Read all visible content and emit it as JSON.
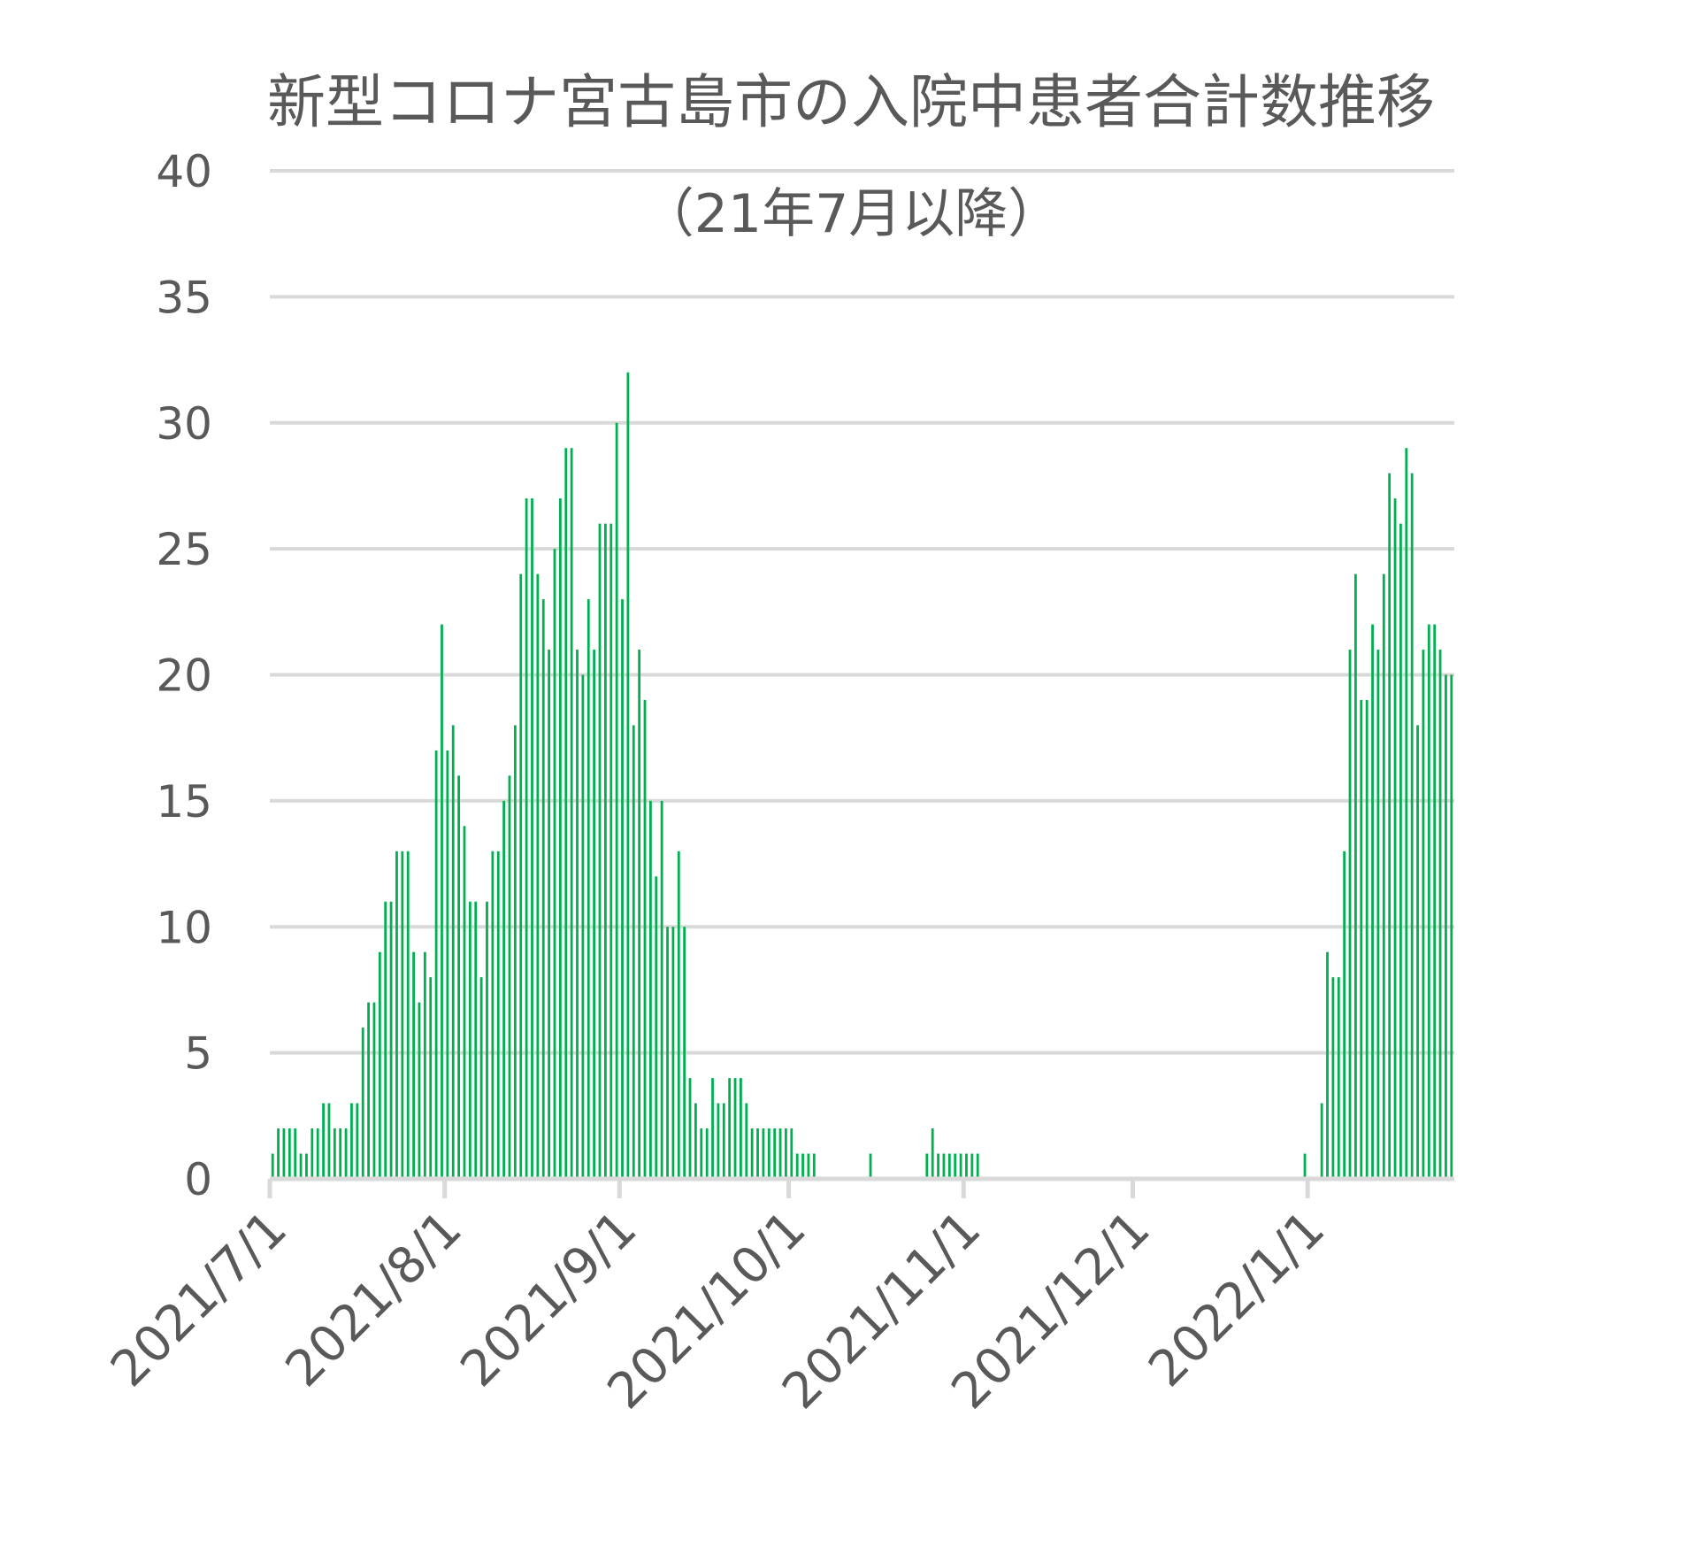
{
  "chart_data": {
    "type": "bar",
    "title": "新型コロナ宮古島市の入院中患者合計数推移",
    "subtitle": "（21年7月以降）",
    "xlabel": "",
    "ylabel": "",
    "ylim": [
      0,
      40
    ],
    "yticks": [
      "0",
      "5",
      "10",
      "15",
      "20",
      "25",
      "30",
      "35",
      "40"
    ],
    "xlim": [
      "2021-07-01",
      "2022-01-27"
    ],
    "xticks": [
      {
        "date": "2021-07-01",
        "label": "2021/7/1"
      },
      {
        "date": "2021-08-01",
        "label": "2021/8/1"
      },
      {
        "date": "2021-09-01",
        "label": "2021/9/1"
      },
      {
        "date": "2021-10-01",
        "label": "2021/10/1"
      },
      {
        "date": "2021-11-01",
        "label": "2021/11/1"
      },
      {
        "date": "2021-12-01",
        "label": "2021/12/1"
      },
      {
        "date": "2022-01-01",
        "label": "2022/1/1"
      }
    ],
    "grid": true,
    "legend": "none",
    "bar_color": "#00b050",
    "grid_color": "#d9d9d9",
    "text_color": "#595959",
    "daily_values": {
      "2021-07": [
        1,
        2,
        2,
        2,
        2,
        1,
        1,
        2,
        2,
        3,
        3,
        2,
        2,
        2,
        3,
        3,
        6,
        7,
        7,
        9,
        11,
        11,
        13,
        13,
        13,
        9,
        7,
        9,
        8,
        17,
        22
      ],
      "2021-08": [
        17,
        18,
        16,
        14,
        11,
        11,
        8,
        11,
        13,
        13,
        15,
        16,
        18,
        24,
        27,
        27,
        24,
        23,
        21,
        25,
        27,
        29,
        29,
        21,
        20,
        23,
        21,
        26,
        26,
        26,
        30
      ],
      "2021-09": [
        23,
        32,
        18,
        21,
        19,
        15,
        12,
        15,
        10,
        10,
        13,
        10,
        4,
        3,
        2,
        2,
        4,
        3,
        3,
        4,
        4,
        4,
        3,
        2,
        2,
        2,
        2,
        2,
        2,
        2
      ],
      "2021-10": [
        2,
        1,
        1,
        1,
        1,
        0,
        0,
        0,
        0,
        0,
        0,
        0,
        0,
        0,
        1,
        0,
        0,
        0,
        0,
        0,
        0,
        0,
        0,
        0,
        1,
        2,
        1,
        1,
        1,
        1,
        1
      ],
      "2021-11": [
        1,
        1,
        1,
        0,
        0,
        0,
        0,
        0,
        0,
        0,
        0,
        0,
        0,
        0,
        0,
        0,
        0,
        0,
        0,
        0,
        0,
        0,
        0,
        0,
        0,
        0,
        0,
        0,
        0,
        0
      ],
      "2021-12": [
        0,
        0,
        0,
        0,
        0,
        0,
        0,
        0,
        0,
        0,
        0,
        0,
        0,
        0,
        0,
        0,
        0,
        0,
        0,
        0,
        0,
        0,
        0,
        0,
        0,
        0,
        0,
        0,
        0,
        0,
        1
      ],
      "2022-01": [
        0,
        0,
        3,
        9,
        8,
        8,
        13,
        21,
        24,
        19,
        19,
        22,
        21,
        24,
        28,
        27,
        26,
        29,
        28,
        18,
        21,
        22,
        22,
        21,
        20,
        20
      ]
    }
  }
}
